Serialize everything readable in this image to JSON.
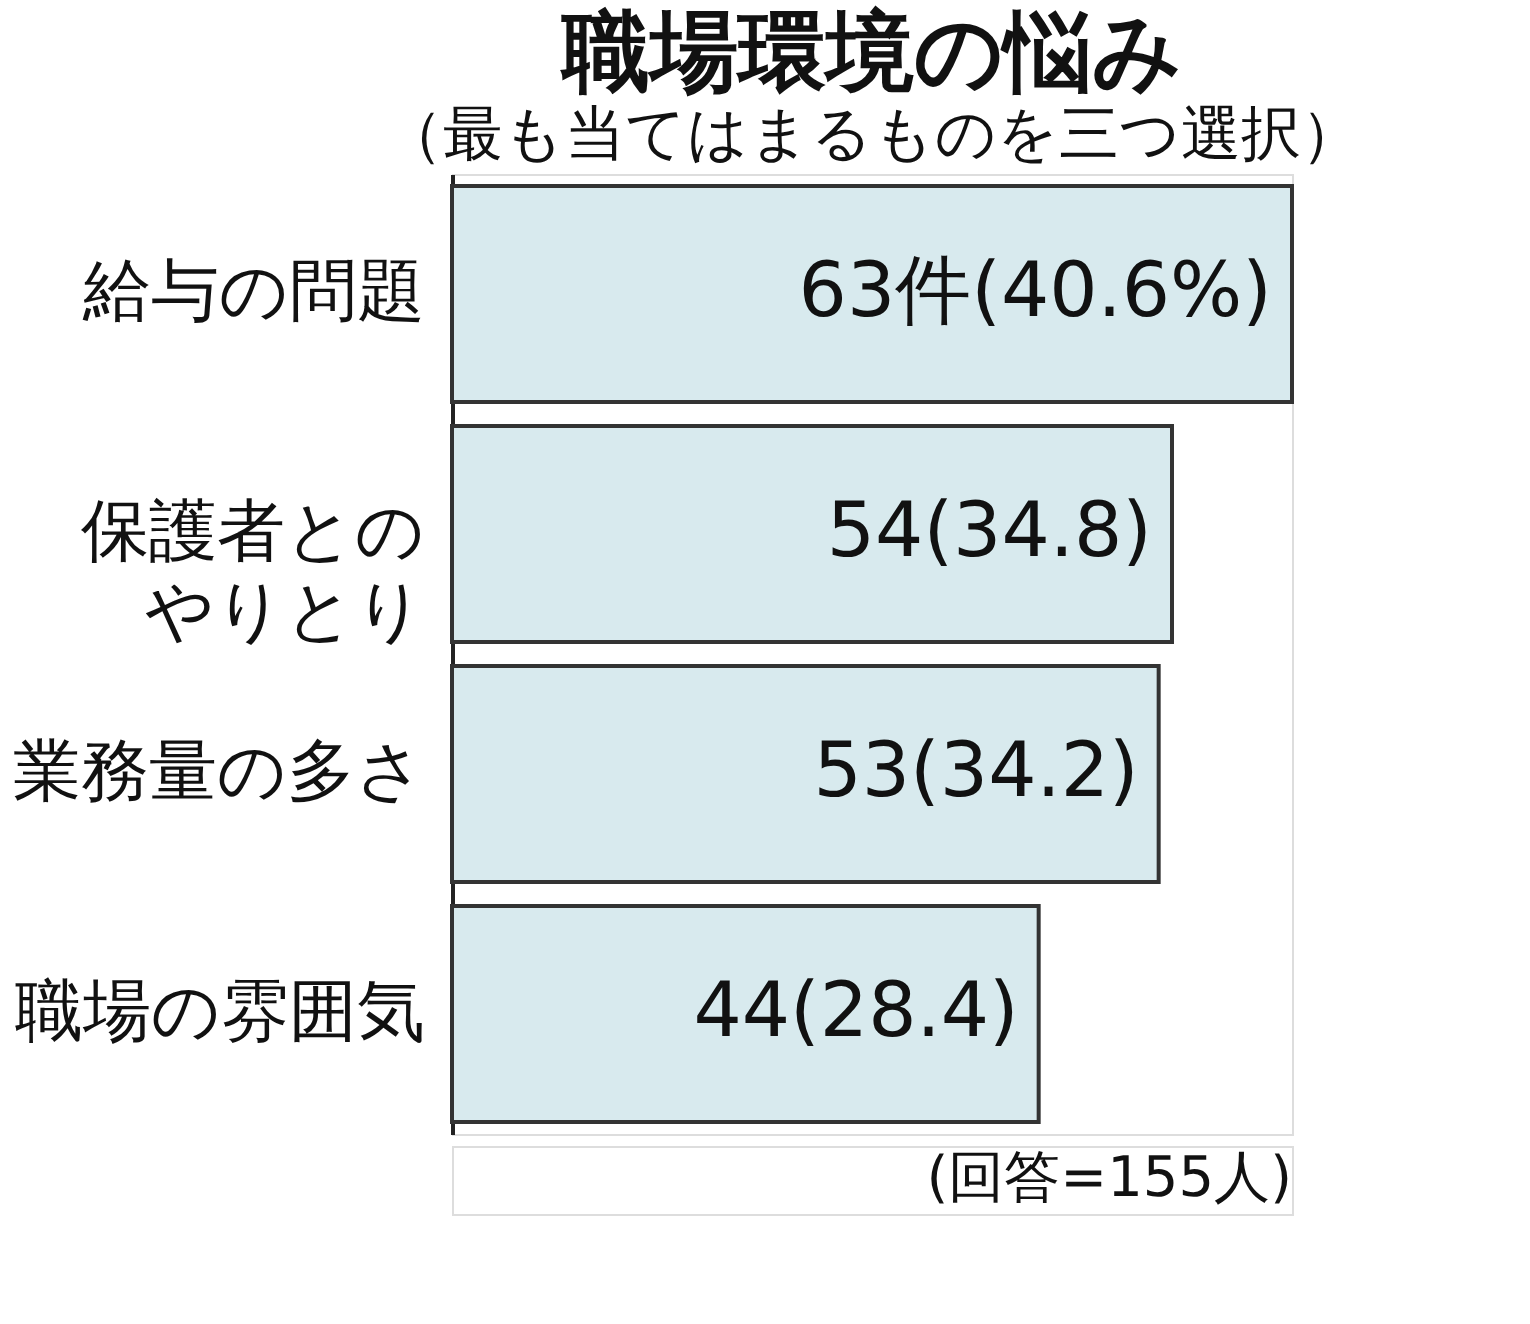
{
  "chart_data": {
    "type": "bar",
    "orientation": "horizontal",
    "title": "職場環境の悩み",
    "subtitle": "（最も当てはまるものを三つ選択）",
    "categories": [
      "給与の問題",
      "保護者とのやりとり",
      "業務量の多さ",
      "職場の雰囲気"
    ],
    "values": [
      63,
      54,
      53,
      44
    ],
    "value_labels": [
      "63件(40.6%)",
      "54(34.8)",
      "53(34.2)",
      "44(28.4)"
    ],
    "color": "#d8eaee",
    "annotations": [
      "(回答=155人)"
    ]
  }
}
